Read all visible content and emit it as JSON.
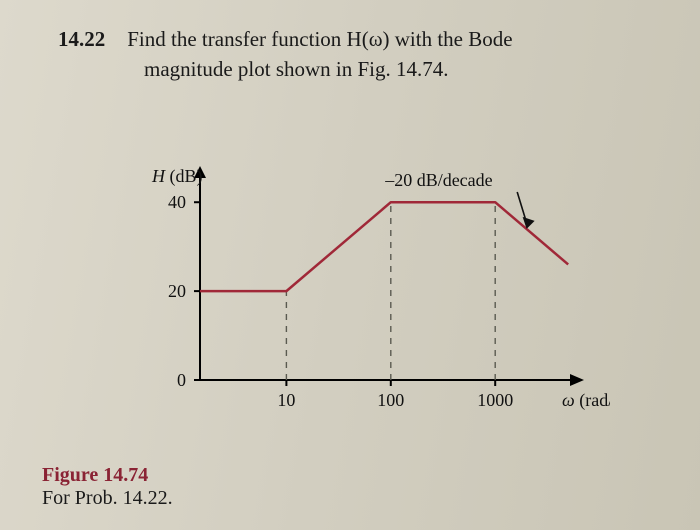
{
  "problem": {
    "number": "14.22",
    "line1": "Find the transfer function H(ω) with the Bode",
    "line2": "magnitude plot shown in Fig. 14.74."
  },
  "figure": {
    "title": "Figure 14.74",
    "subtitle": "For Prob. 14.22."
  },
  "chart": {
    "type": "bode-magnitude",
    "y_label": "H (dB)",
    "x_label": "ω (rad/s)",
    "annotation": "–20 dB/decade",
    "x_ticks": [
      10,
      100,
      1000
    ],
    "y_ticks": [
      0,
      20,
      40
    ],
    "ylim": [
      0,
      45
    ],
    "line_color": "#a02838",
    "line_width": 2.5,
    "axis_color": "#000000",
    "grid_dash_color": "#5a5a50",
    "background_color": "transparent",
    "segments": [
      {
        "from_x": 0,
        "from_y": 20,
        "to_x": 10,
        "to_y": 20,
        "slope_db_per_decade": 0
      },
      {
        "from_x": 10,
        "from_y": 20,
        "to_x": 100,
        "to_y": 40,
        "slope_db_per_decade": 20
      },
      {
        "from_x": 100,
        "from_y": 40,
        "to_x": 1000,
        "to_y": 40,
        "slope_db_per_decade": 0
      },
      {
        "from_x": 1000,
        "from_y": 40,
        "to_x": 5000,
        "to_y": 26,
        "slope_db_per_decade": -20
      }
    ],
    "fontsize_labels": 18,
    "fontsize_ticks": 18
  }
}
